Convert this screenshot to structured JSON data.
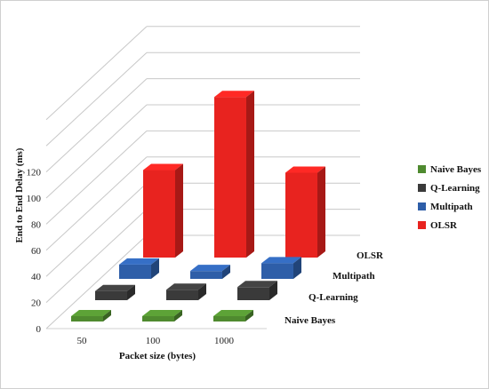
{
  "chart_data": {
    "type": "bar",
    "subtype": "3d-column",
    "categories": [
      "50",
      "100",
      "1000"
    ],
    "series": [
      {
        "name": "Naive Bayes",
        "values": [
          2,
          2,
          3
        ],
        "color": "#4f8a2f"
      },
      {
        "name": "Q-Learning",
        "values": [
          7,
          8,
          10
        ],
        "color": "#3a3a3a"
      },
      {
        "name": "Multipath",
        "values": [
          11,
          6,
          12
        ],
        "color": "#2e5ea8"
      },
      {
        "name": "OLSR",
        "values": [
          67,
          123,
          65
        ],
        "color": "#e8231f"
      }
    ],
    "y_ticks": [
      "0",
      "20",
      "40",
      "60",
      "80",
      "100",
      "120"
    ],
    "xlabel": "Packet size (bytes)",
    "ylabel": "End to End Delay (ms)",
    "ylim": [
      0,
      140
    ],
    "grid": true,
    "legend_position": "right"
  }
}
